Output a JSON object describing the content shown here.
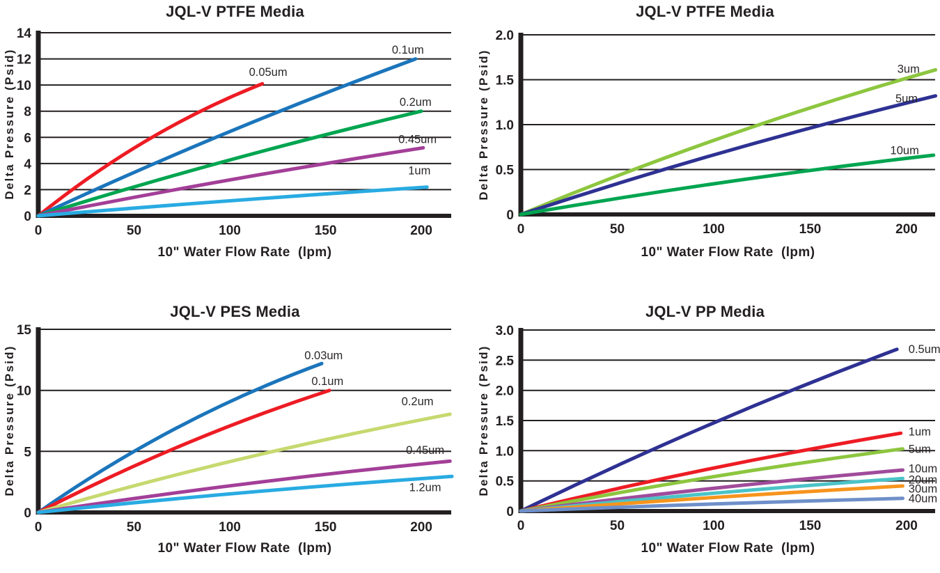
{
  "page": {
    "background": "#ffffff",
    "ink": "#231f20"
  },
  "chart_data": [
    {
      "id": "ptfe-media-fine",
      "type": "line",
      "title": "JQL-V PTFE Media",
      "xlabel": "10\" Water Flow Rate  (lpm)",
      "ylabel": "Delta Pressure (Psid)",
      "xlim": [
        0,
        215.6
      ],
      "ylim": [
        0,
        14
      ],
      "x_ticks": [
        0,
        50,
        100,
        150,
        200
      ],
      "x_tick_labels": [
        "0",
        "50",
        "100",
        "150",
        "200"
      ],
      "y_ticks": [
        0,
        2,
        4,
        6,
        8,
        10,
        12,
        14
      ],
      "y_tick_labels": [
        "0",
        "2",
        "4",
        "6",
        "8",
        "10",
        "12",
        "14"
      ],
      "grid": true,
      "series": [
        {
          "name": "0.05um",
          "color": "#ed1c24",
          "points": [
            [
              0,
              0
            ],
            [
              57,
              5.8
            ],
            [
              117,
              10.1
            ]
          ],
          "label_pos": [
            120,
            11.0
          ],
          "label_anchor": "middle"
        },
        {
          "name": "0.1um",
          "color": "#1b75bb",
          "points": [
            [
              0,
              0
            ],
            [
              96,
              6.2
            ],
            [
              197,
              12.0
            ]
          ],
          "label_pos": [
            193,
            12.7
          ],
          "label_anchor": "middle"
        },
        {
          "name": "0.2um",
          "color": "#00a550",
          "points": [
            [
              0,
              0
            ],
            [
              97,
              4.15
            ],
            [
              200,
              8.0
            ]
          ],
          "label_pos": [
            197,
            8.7
          ],
          "label_anchor": "middle"
        },
        {
          "name": "0.45um",
          "color": "#a33f98",
          "points": [
            [
              0,
              0
            ],
            [
              99,
              2.72
            ],
            [
              201,
              5.2
            ]
          ],
          "label_pos": [
            198,
            5.85
          ],
          "label_anchor": "middle"
        },
        {
          "name": "1um",
          "color": "#29abe2",
          "points": [
            [
              0,
              0
            ],
            [
              100,
              1.15
            ],
            [
              203,
              2.2
            ]
          ],
          "label_pos": [
            199,
            3.45
          ],
          "label_anchor": "middle"
        }
      ]
    },
    {
      "id": "ptfe-media-coarse",
      "type": "line",
      "title": "JQL-V PTFE Media",
      "xlabel": "10\" Water Flow Rate  (lpm)",
      "ylabel": "Delta Pressure (Psid)",
      "xlim": [
        0,
        214.8
      ],
      "ylim": [
        0,
        2.0
      ],
      "x_ticks": [
        0,
        50,
        100,
        150,
        200
      ],
      "x_tick_labels": [
        "0",
        "50",
        "100",
        "150",
        "200"
      ],
      "y_ticks": [
        0,
        0.5,
        1.0,
        1.5,
        2.0
      ],
      "y_tick_labels": [
        "0",
        "0.5",
        "1.0",
        "1.5",
        "2.0"
      ],
      "grid": true,
      "series": [
        {
          "name": "3um",
          "color": "#8dc63f",
          "points": [
            [
              0,
              0
            ],
            [
              106,
              0.87
            ],
            [
              215,
              1.61
            ]
          ],
          "label_pos": [
            201,
            1.62
          ],
          "label_anchor": "middle"
        },
        {
          "name": "5um",
          "color": "#2e3192",
          "points": [
            [
              0,
              0
            ],
            [
              106,
              0.7
            ],
            [
              215,
              1.32
            ]
          ],
          "label_pos": [
            200,
            1.29
          ],
          "label_anchor": "middle"
        },
        {
          "name": "10um",
          "color": "#00a550",
          "points": [
            [
              0,
              0
            ],
            [
              106,
              0.36
            ],
            [
              214,
              0.66
            ]
          ],
          "label_pos": [
            199,
            0.715
          ],
          "label_anchor": "middle"
        }
      ]
    },
    {
      "id": "pes-media",
      "type": "line",
      "title": "JQL-V PES Media",
      "xlabel": "10\" Water Flow Rate  (lpm)",
      "ylabel": "Delta Pressure (Psid)",
      "xlim": [
        0,
        215.6
      ],
      "ylim": [
        0,
        15
      ],
      "x_ticks": [
        0,
        50,
        100,
        150,
        200
      ],
      "x_tick_labels": [
        "0",
        "50",
        "100",
        "150",
        "200"
      ],
      "y_ticks": [
        0,
        5,
        10,
        15
      ],
      "y_tick_labels": [
        "0",
        "5",
        "10",
        "15"
      ],
      "grid": true,
      "series": [
        {
          "name": "0.03um",
          "color": "#1b75bb",
          "points": [
            [
              0,
              0
            ],
            [
              72,
              6.9
            ],
            [
              148,
              12.2
            ]
          ],
          "label_pos": [
            149,
            12.85
          ],
          "label_anchor": "middle"
        },
        {
          "name": "0.1um",
          "color": "#ed1c24",
          "points": [
            [
              0,
              0
            ],
            [
              75,
              5.5
            ],
            [
              152,
              10.0
            ]
          ],
          "label_pos": [
            151,
            10.75
          ],
          "label_anchor": "middle"
        },
        {
          "name": "0.2um",
          "color": "#c6d96f",
          "points": [
            [
              0,
              0
            ],
            [
              105,
              4.35
            ],
            [
              215,
              8.05
            ]
          ],
          "label_pos": [
            198,
            9.1
          ],
          "label_anchor": "middle"
        },
        {
          "name": "0.45um",
          "color": "#a33f98",
          "points": [
            [
              0,
              0
            ],
            [
              106,
              2.3
            ],
            [
              215,
              4.2
            ]
          ],
          "label_pos": [
            202,
            5.1
          ],
          "label_anchor": "middle"
        },
        {
          "name": "1.2um",
          "color": "#29abe2",
          "points": [
            [
              0,
              0
            ],
            [
              106,
              1.6
            ],
            [
              216,
              2.95
            ]
          ],
          "label_pos": [
            202,
            2.05
          ],
          "label_anchor": "middle"
        }
      ]
    },
    {
      "id": "pp-media",
      "type": "line",
      "title": "JQL-V PP Media",
      "xlabel": "10\" Water Flow Rate  (lpm)",
      "ylabel": "Delta Pressure (Psid)",
      "xlim": [
        0,
        214.8
      ],
      "ylim": [
        0,
        3.0
      ],
      "x_ticks": [
        0,
        50,
        100,
        150,
        200
      ],
      "x_tick_labels": [
        "0",
        "50",
        "100",
        "150",
        "200"
      ],
      "y_ticks": [
        0,
        0.5,
        1.0,
        1.5,
        2.0,
        2.5,
        3.0
      ],
      "y_tick_labels": [
        "0",
        "0.5",
        "1.0",
        "1.5",
        "2.0",
        "2.5",
        "3.0"
      ],
      "grid": true,
      "series": [
        {
          "name": "0.5um",
          "color": "#2e3192",
          "points": [
            [
              0,
              0
            ],
            [
              97,
              1.42
            ],
            [
              195,
              2.68
            ]
          ],
          "label_pos": [
            201,
            2.68
          ],
          "label_anchor": "start"
        },
        {
          "name": "1um",
          "color": "#ed1c24",
          "points": [
            [
              0,
              0
            ],
            [
              98,
              0.7
            ],
            [
              197,
              1.29
            ]
          ],
          "label_pos": [
            201,
            1.315
          ],
          "label_anchor": "start"
        },
        {
          "name": "5um",
          "color": "#8dc63f",
          "points": [
            [
              0,
              0
            ],
            [
              98,
              0.56
            ],
            [
              198,
              1.03
            ]
          ],
          "label_pos": [
            201,
            1.025
          ],
          "label_anchor": "start"
        },
        {
          "name": "10um",
          "color": "#a04b9b",
          "points": [
            [
              0,
              0
            ],
            [
              98,
              0.37
            ],
            [
              198,
              0.68
            ]
          ],
          "label_pos": [
            201,
            0.705
          ],
          "label_anchor": "start"
        },
        {
          "name": "20um",
          "color": "#4bc3c7",
          "points": [
            [
              0,
              0
            ],
            [
              98,
              0.29
            ],
            [
              198,
              0.54
            ]
          ],
          "label_pos": [
            201,
            0.52
          ],
          "label_anchor": "start"
        },
        {
          "name": "30um",
          "color": "#f7941d",
          "points": [
            [
              0,
              0
            ],
            [
              98,
              0.22
            ],
            [
              198,
              0.415
            ]
          ],
          "label_pos": [
            201,
            0.37
          ],
          "label_anchor": "start"
        },
        {
          "name": "40um",
          "color": "#6e8fc9",
          "points": [
            [
              0,
              0
            ],
            [
              98,
              0.115
            ],
            [
              198,
              0.21
            ]
          ],
          "label_pos": [
            201,
            0.21
          ],
          "label_anchor": "start"
        }
      ]
    }
  ]
}
